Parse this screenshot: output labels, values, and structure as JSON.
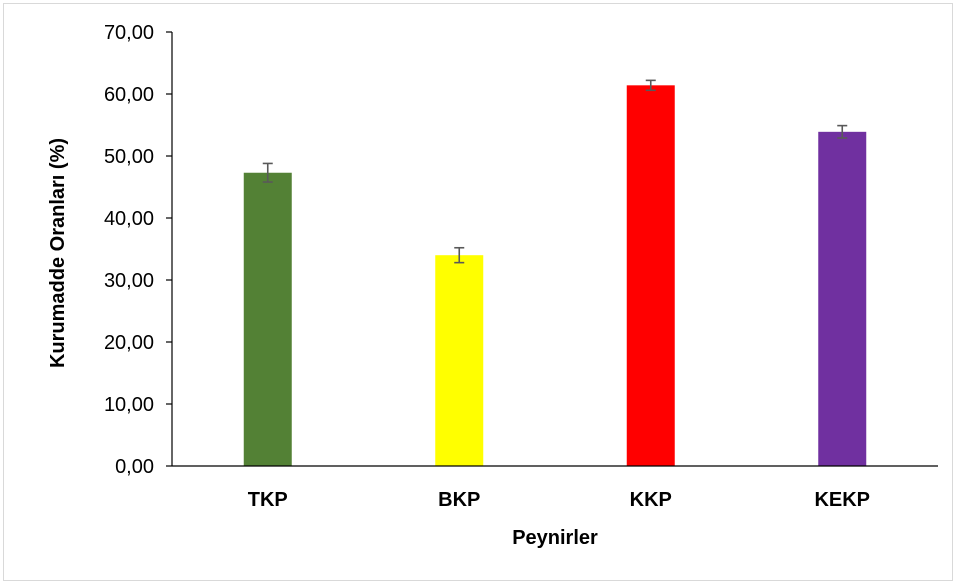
{
  "chart_data": {
    "type": "bar",
    "title": "",
    "xlabel": "Peynirler",
    "ylabel": "Kurumadde Oranları (%)",
    "ylim": [
      0,
      70
    ],
    "yticks": [
      "0,00",
      "10,00",
      "20,00",
      "30,00",
      "40,00",
      "50,00",
      "60,00",
      "70,00"
    ],
    "categories": [
      "TKP",
      "BKP",
      "KKP",
      "KEKP"
    ],
    "values": [
      47.3,
      34.0,
      61.4,
      53.9
    ],
    "error": [
      1.5,
      1.2,
      0.8,
      1.0
    ],
    "colors": [
      "#538135",
      "#ffff00",
      "#ff0000",
      "#7030a0"
    ],
    "grid": false,
    "legend": "none",
    "error_bar_color": "#595959"
  }
}
